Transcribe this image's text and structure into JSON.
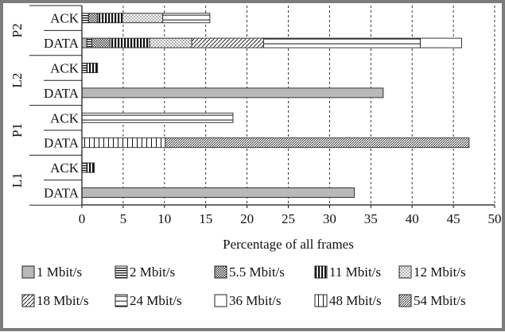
{
  "chart_data": {
    "type": "bar",
    "orientation": "horizontal",
    "stacked": true,
    "xlabel": "Percentage of all frames",
    "xlim": [
      0,
      50
    ],
    "xticks": [
      0,
      5,
      10,
      15,
      20,
      25,
      30,
      35,
      40,
      45,
      50
    ],
    "grid": "vertical dashed",
    "legend_position": "bottom",
    "groups": [
      {
        "label": "P2",
        "rows": [
          {
            "label": "ACK",
            "segments": [
              {
                "rate": "2 Mbit/s",
                "value": 0.8
              },
              {
                "rate": "5.5 Mbit/s",
                "value": 1.1
              },
              {
                "rate": "11 Mbit/s",
                "value": 3.0
              },
              {
                "rate": "12 Mbit/s",
                "value": 4.9
              },
              {
                "rate": "24 Mbit/s",
                "value": 5.7
              }
            ]
          },
          {
            "label": "DATA",
            "segments": [
              {
                "rate": "1 Mbit/s",
                "value": 0.6
              },
              {
                "rate": "2 Mbit/s",
                "value": 0.6
              },
              {
                "rate": "5.5 Mbit/s",
                "value": 2.2
              },
              {
                "rate": "11 Mbit/s",
                "value": 4.8
              },
              {
                "rate": "12 Mbit/s",
                "value": 5.1
              },
              {
                "rate": "18 Mbit/s",
                "value": 8.7
              },
              {
                "rate": "24 Mbit/s",
                "value": 19.0
              },
              {
                "rate": "36 Mbit/s",
                "value": 5.0
              }
            ]
          }
        ]
      },
      {
        "label": "L2",
        "rows": [
          {
            "label": "ACK",
            "segments": [
              {
                "rate": "2 Mbit/s",
                "value": 0.6
              },
              {
                "rate": "11 Mbit/s",
                "value": 1.3
              }
            ]
          },
          {
            "label": "DATA",
            "segments": [
              {
                "rate": "1 Mbit/s",
                "value": 36.5
              }
            ]
          }
        ]
      },
      {
        "label": "P1",
        "rows": [
          {
            "label": "ACK",
            "segments": [
              {
                "rate": "24 Mbit/s",
                "value": 18.3
              }
            ]
          },
          {
            "label": "DATA",
            "segments": [
              {
                "rate": "48 Mbit/s",
                "value": 10.1
              },
              {
                "rate": "54 Mbit/s",
                "value": 36.8
              }
            ]
          }
        ]
      },
      {
        "label": "L1",
        "rows": [
          {
            "label": "ACK",
            "segments": [
              {
                "rate": "2 Mbit/s",
                "value": 0.6
              },
              {
                "rate": "11 Mbit/s",
                "value": 0.9
              }
            ]
          },
          {
            "label": "DATA",
            "segments": [
              {
                "rate": "1 Mbit/s",
                "value": 33.0
              }
            ]
          }
        ]
      }
    ],
    "legend": [
      {
        "label": "1 Mbit/s",
        "pattern": "solid-gray"
      },
      {
        "label": "2 Mbit/s",
        "pattern": "horizontal-lines"
      },
      {
        "label": "5.5 Mbit/s",
        "pattern": "dense-checker"
      },
      {
        "label": "11 Mbit/s",
        "pattern": "thick-vertical"
      },
      {
        "label": "12 Mbit/s",
        "pattern": "dots"
      },
      {
        "label": "18 Mbit/s",
        "pattern": "diagonal"
      },
      {
        "label": "24 Mbit/s",
        "pattern": "single-horizontal"
      },
      {
        "label": "36 Mbit/s",
        "pattern": "empty"
      },
      {
        "label": "48 Mbit/s",
        "pattern": "thin-vertical"
      },
      {
        "label": "54 Mbit/s",
        "pattern": "dense-diagonal"
      }
    ]
  }
}
